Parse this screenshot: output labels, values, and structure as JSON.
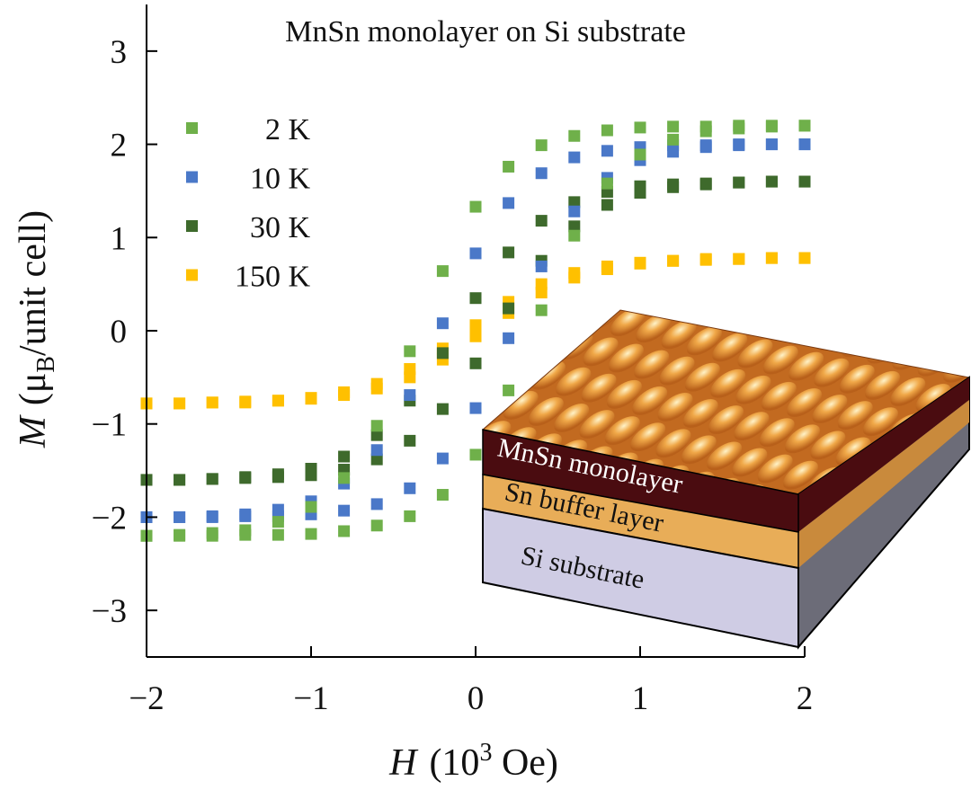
{
  "chart_data": {
    "type": "scatter",
    "title": "MnSn monolayer on Si substrate",
    "xlabel": {
      "symbol": "H",
      "open": "(10",
      "power": "3",
      "unit": " Oe)"
    },
    "ylabel": {
      "symbol": "M",
      "open": "(μ",
      "subscript": "B",
      "unit": "/unit cell)"
    },
    "xlim": [
      -2,
      2
    ],
    "ylim": [
      -3.5,
      3.5
    ],
    "xticks": [
      {
        "value": -2,
        "label": "−2"
      },
      {
        "value": -1,
        "label": "−1"
      },
      0,
      1,
      2
    ],
    "yticks": [
      {
        "value": -3,
        "label": "−3"
      },
      {
        "value": -2,
        "label": "−2"
      },
      {
        "value": -1,
        "label": "−1"
      },
      0,
      1,
      2,
      3
    ],
    "legend": "upper left",
    "x": [
      -2,
      -1.8,
      -1.6,
      -1.4,
      -1.2,
      -1,
      -0.8,
      -0.6,
      -0.4,
      -0.2,
      0,
      0.2,
      0.4,
      0.6,
      0.8,
      1,
      1.2,
      1.4,
      1.6,
      1.8,
      2,
      -2,
      -1.8,
      -1.6,
      -1.4,
      -1.2,
      -1,
      -0.8,
      -0.6,
      -0.4,
      -0.2,
      0,
      0.2,
      0.4,
      0.6,
      0.8,
      1,
      1.2,
      1.4,
      1.6,
      1.8,
      2
    ],
    "series": [
      {
        "name": "2 K",
        "color": "#6fb04a",
        "values": [
          -2.2,
          -2.19,
          -2.17,
          -2.14,
          -2.05,
          -1.89,
          -1.58,
          -1.02,
          -0.22,
          0.64,
          1.33,
          1.76,
          1.99,
          2.09,
          2.15,
          2.18,
          2.19,
          2.19,
          2.2,
          2.2,
          2.2,
          -2.2,
          -2.2,
          -2.2,
          -2.19,
          -2.19,
          -2.18,
          -2.15,
          -2.09,
          -1.99,
          -1.76,
          -1.33,
          -0.64,
          0.22,
          1.02,
          1.58,
          1.89,
          2.05,
          2.14,
          2.17,
          2.19,
          2.2
        ]
      },
      {
        "name": "10 K",
        "color": "#4a78c8",
        "values": [
          -2.0,
          -2.0,
          -1.99,
          -1.97,
          -1.92,
          -1.83,
          -1.64,
          -1.28,
          -0.69,
          0.08,
          0.83,
          1.37,
          1.69,
          1.86,
          1.93,
          1.97,
          1.99,
          1.99,
          2.0,
          2.0,
          2.0,
          -2.0,
          -2.0,
          -2.0,
          -1.99,
          -1.99,
          -1.97,
          -1.93,
          -1.86,
          -1.69,
          -1.37,
          -0.83,
          -0.08,
          0.69,
          1.28,
          1.64,
          1.83,
          1.92,
          1.97,
          1.99,
          2.0,
          2.0
        ]
      },
      {
        "name": "30 K",
        "color": "#3e6a2c",
        "values": [
          -1.6,
          -1.6,
          -1.59,
          -1.57,
          -1.54,
          -1.48,
          -1.35,
          -1.12,
          -0.75,
          -0.24,
          0.35,
          0.84,
          1.18,
          1.38,
          1.49,
          1.55,
          1.57,
          1.58,
          1.59,
          1.6,
          1.6,
          -1.6,
          -1.6,
          -1.59,
          -1.58,
          -1.57,
          -1.55,
          -1.49,
          -1.38,
          -1.18,
          -0.84,
          -0.35,
          0.24,
          0.75,
          1.12,
          1.35,
          1.48,
          1.54,
          1.57,
          1.59,
          1.6,
          1.6
        ]
      },
      {
        "name": "150 K",
        "color": "#ffc000",
        "values": [
          -0.78,
          -0.78,
          -0.77,
          -0.76,
          -0.75,
          -0.72,
          -0.66,
          -0.57,
          -0.41,
          -0.19,
          0.06,
          0.31,
          0.5,
          0.62,
          0.69,
          0.73,
          0.75,
          0.77,
          0.77,
          0.78,
          0.78,
          -0.78,
          -0.78,
          -0.77,
          -0.77,
          -0.75,
          -0.73,
          -0.69,
          -0.62,
          -0.5,
          -0.31,
          -0.06,
          0.19,
          0.41,
          0.57,
          0.66,
          0.72,
          0.75,
          0.76,
          0.77,
          0.78,
          0.78
        ]
      }
    ],
    "inset_labels": [
      "MnSn monolayer",
      "Sn buffer layer",
      "Si substrate"
    ]
  }
}
